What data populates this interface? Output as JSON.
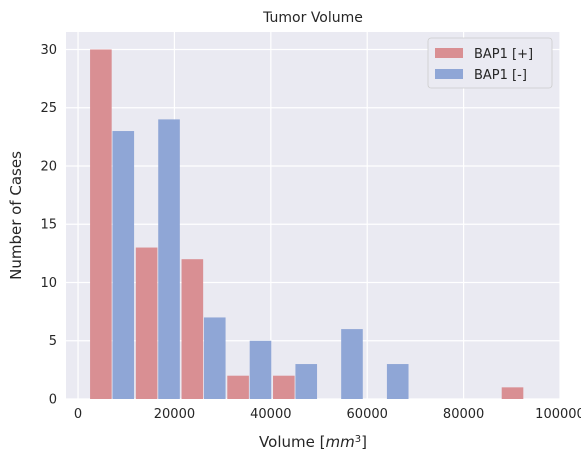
{
  "chart_data": {
    "type": "bar",
    "title": "Tumor Volume",
    "xlabel": "Volume [",
    "xlabel_math": "mm",
    "xlabel_sup": "3",
    "xlabel_end": "]",
    "ylabel": "Number of Cases",
    "xlim": [
      -2500,
      100000
    ],
    "ylim": [
      0,
      31.5
    ],
    "xticks": [
      0,
      20000,
      40000,
      60000,
      80000,
      100000
    ],
    "xtick_labels": [
      "0",
      "20000",
      "40000",
      "60000",
      "80000",
      "100000"
    ],
    "yticks": [
      0,
      5,
      10,
      15,
      20,
      25,
      30
    ],
    "ytick_labels": [
      "0",
      "5",
      "10",
      "15",
      "20",
      "25",
      "30"
    ],
    "grid": true,
    "legend_position": "top-right",
    "bin_edges": [
      2400,
      11890,
      21380,
      30870,
      40360,
      49850,
      59340,
      68830,
      78320,
      87810,
      97300
    ],
    "series": [
      {
        "name": "BAP1 [+]",
        "color": "#d98f93",
        "values": [
          30,
          13,
          12,
          2,
          2,
          0,
          0,
          0,
          0,
          1
        ]
      },
      {
        "name": "BAP1 [-]",
        "color": "#8fa6d6",
        "values": [
          23,
          24,
          7,
          5,
          3,
          6,
          3,
          0,
          0,
          0
        ]
      }
    ]
  }
}
